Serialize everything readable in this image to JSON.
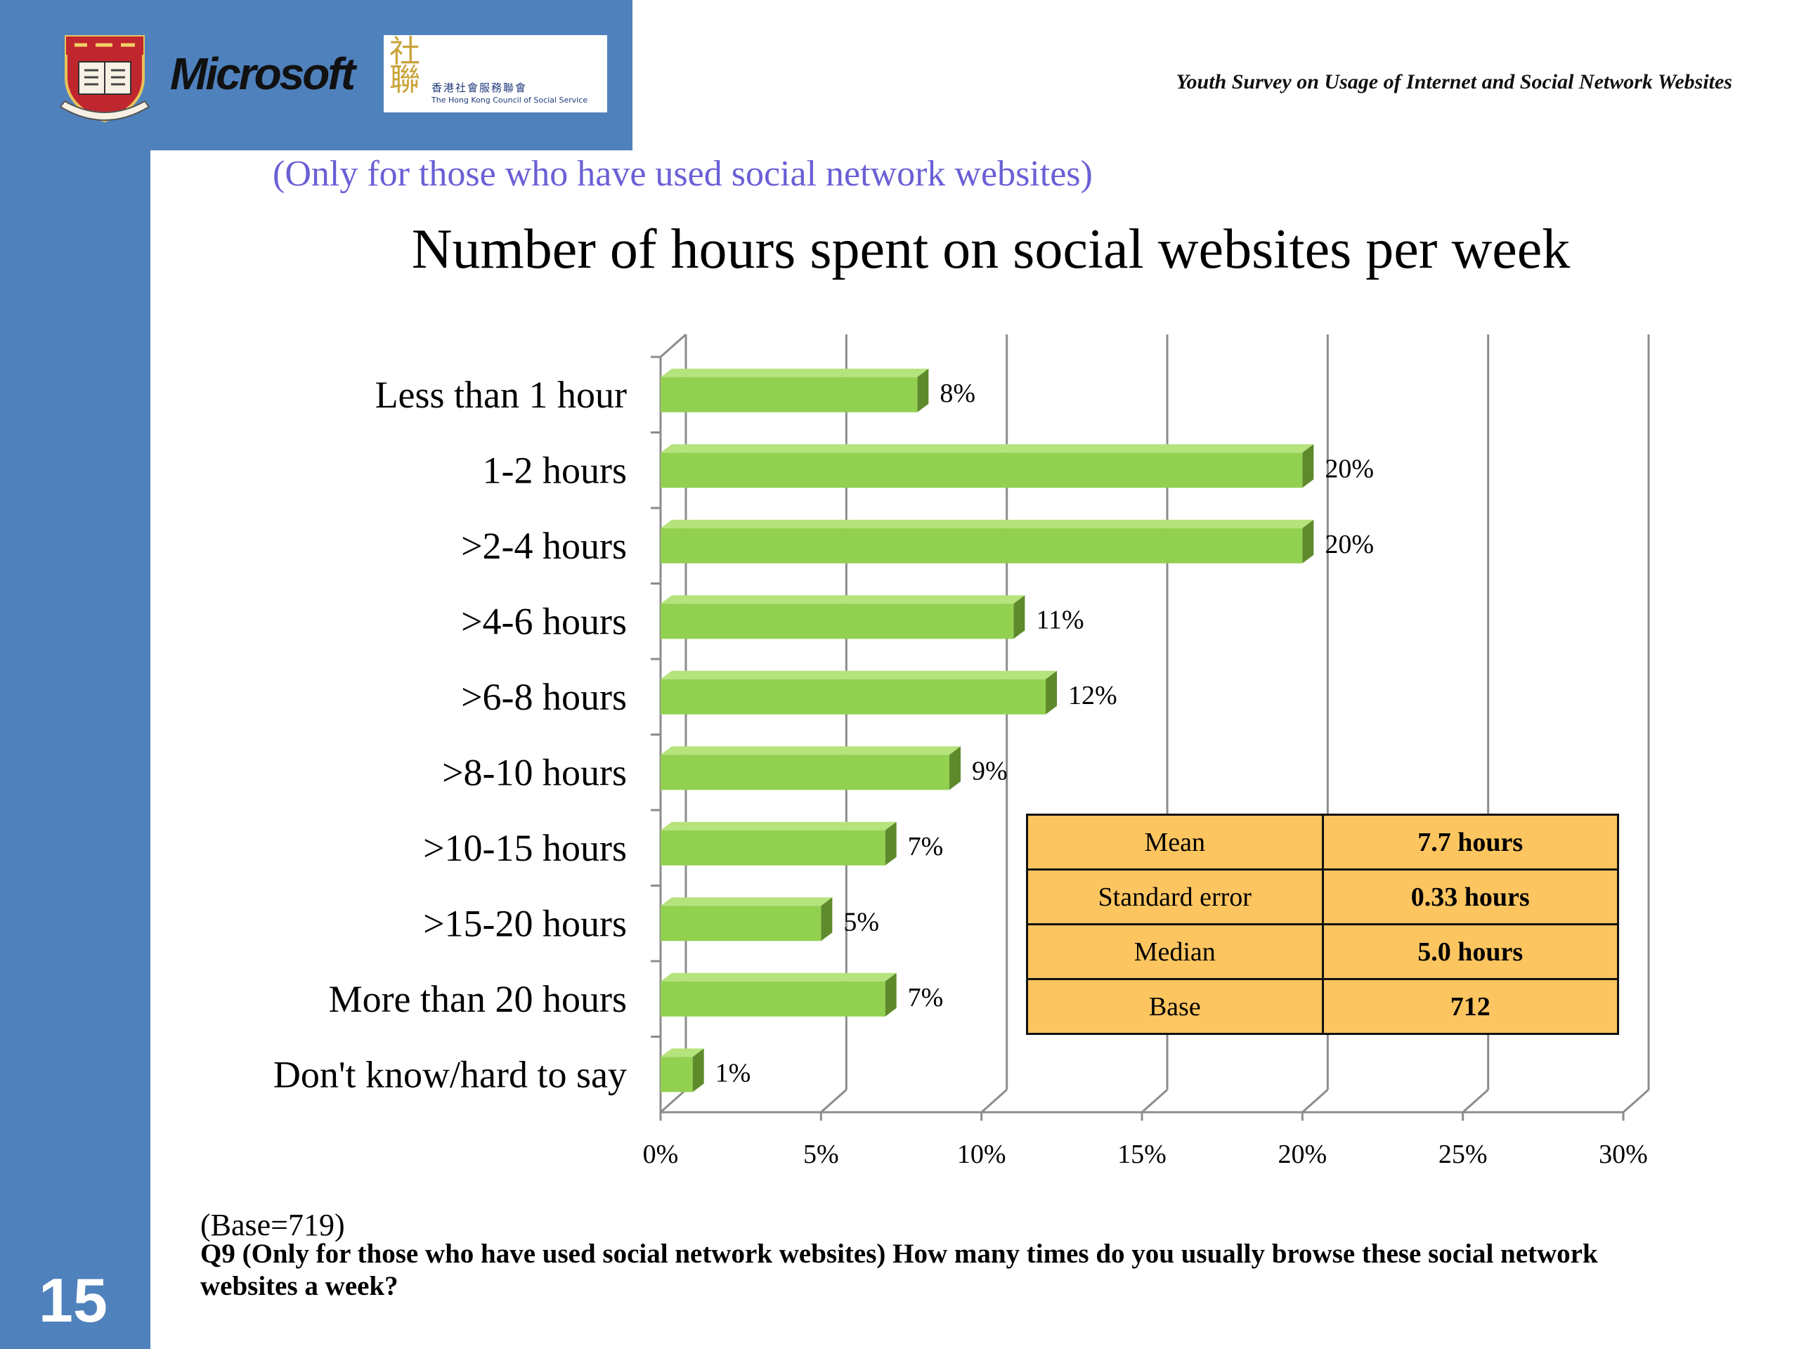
{
  "header": {
    "ms_logo_text": "Microsoft",
    "hkcss_glyph": "社聯",
    "hkcss_name_zh": "香港社會服務聯會",
    "hkcss_name_en": "The Hong Kong Council of Social Service",
    "survey_title": "Youth Survey on Usage of Internet and Social Network Websites"
  },
  "subtitle_note": "(Only for those who have used social network websites)",
  "chart_data": {
    "type": "bar",
    "orientation": "horizontal",
    "title": "Number of hours spent on social websites per  week",
    "categories": [
      "Less than 1 hour",
      "1-2 hours",
      ">2-4 hours",
      ">4-6 hours",
      ">6-8 hours",
      ">8-10 hours",
      ">10-15 hours",
      ">15-20 hours",
      "More than 20 hours",
      "Don't know/hard to say"
    ],
    "values": [
      8,
      20,
      20,
      11,
      12,
      9,
      7,
      5,
      7,
      1
    ],
    "value_labels": [
      "8%",
      "20%",
      "20%",
      "11%",
      "12%",
      "9%",
      "7%",
      "5%",
      "7%",
      "1%"
    ],
    "xlim": [
      0,
      30
    ],
    "xticks": [
      0,
      5,
      10,
      15,
      20,
      25,
      30
    ],
    "xtick_labels": [
      "0%",
      "5%",
      "10%",
      "15%",
      "20%",
      "25%",
      "30%"
    ],
    "grid": true,
    "style": "3d",
    "colors": {
      "bar_front": "#92d050",
      "bar_top": "#b5e37c",
      "bar_side": "#5e8a2c",
      "grid": "#8c8c8c"
    }
  },
  "stats_table": {
    "rows": [
      {
        "label": "Mean",
        "value": "7.7 hours"
      },
      {
        "label": "Standard error",
        "value": "0.33 hours"
      },
      {
        "label": "Median",
        "value": "5.0 hours"
      },
      {
        "label": "Base",
        "value": "712"
      }
    ]
  },
  "footer": {
    "base_note": "(Base=719)",
    "question": "Q9   (Only for those who have used social network websites) How many times do you usually browse these social network websites a week?"
  },
  "slide_number": "15",
  "colors": {
    "sidebar": "#4f81bd",
    "subtitle": "#6b5fd6",
    "table_fill": "#fcc560"
  }
}
